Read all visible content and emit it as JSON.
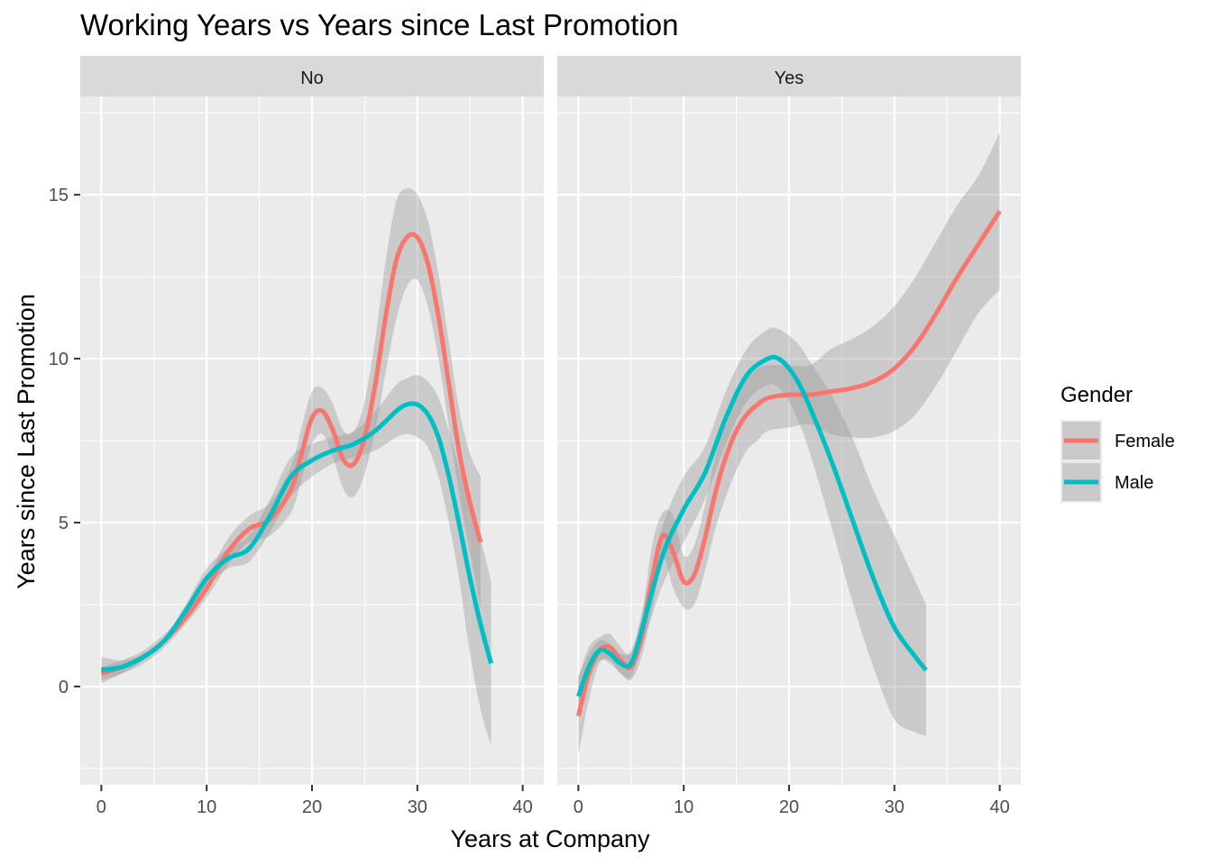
{
  "chart_data": {
    "type": "line",
    "title": "Working Years vs Years since Last Promotion",
    "xlabel": "Years at Company",
    "ylabel": "Years since Last Promotion",
    "xlim": [
      -2,
      42
    ],
    "ylim": [
      -3,
      18
    ],
    "x_ticks": [
      0,
      10,
      20,
      30,
      40
    ],
    "y_ticks": [
      0,
      5,
      10,
      15
    ],
    "grid": true,
    "legend": {
      "title": "Gender",
      "position": "right",
      "entries": [
        "Female",
        "Male"
      ]
    },
    "colors": {
      "Female": "#F8766D",
      "Male": "#00BFC4",
      "ribbon": "#999999",
      "panel": "#EBEBEB",
      "strip": "#D9D9D9"
    },
    "panels": [
      {
        "label": "No",
        "series": [
          {
            "name": "Female",
            "x": [
              0,
              2,
              4,
              6,
              8,
              10,
              12,
              14,
              16,
              18,
              19,
              20,
              21,
              22,
              23,
              24,
              25,
              26,
              27,
              28,
              29,
              30,
              31,
              32,
              33,
              34,
              35,
              36
            ],
            "y": [
              0.4,
              0.6,
              0.9,
              1.4,
              2.1,
              3.0,
              4.1,
              4.8,
              5.1,
              6.0,
              7.1,
              8.2,
              8.4,
              7.8,
              6.9,
              6.8,
              7.6,
              9.2,
              11.3,
              13.0,
              13.7,
              13.7,
              12.9,
              11.3,
              9.2,
              7.1,
              5.6,
              4.4
            ],
            "lower": [
              0.2,
              0.4,
              0.7,
              1.2,
              1.9,
              2.7,
              3.7,
              4.4,
              4.6,
              5.3,
              6.3,
              7.4,
              7.7,
              7.0,
              6.0,
              5.8,
              6.5,
              7.8,
              9.6,
              11.2,
              12.2,
              12.4,
              11.6,
              10.0,
              7.9,
              5.8,
              4.1,
              2.4
            ],
            "upper": [
              0.6,
              0.8,
              1.1,
              1.6,
              2.3,
              3.3,
              4.5,
              5.2,
              5.6,
              6.7,
              7.9,
              9.0,
              9.1,
              8.6,
              7.8,
              7.8,
              8.7,
              10.6,
              13.0,
              14.8,
              15.2,
              15.0,
              14.2,
              12.6,
              10.5,
              8.4,
              7.1,
              6.4
            ]
          },
          {
            "name": "Male",
            "x": [
              0,
              2,
              4,
              6,
              8,
              10,
              12,
              14,
              16,
              18,
              20,
              22,
              24,
              26,
              28,
              29,
              30,
              31,
              32,
              33,
              34,
              35,
              36,
              37
            ],
            "y": [
              0.5,
              0.6,
              0.9,
              1.4,
              2.3,
              3.3,
              3.9,
              4.2,
              5.2,
              6.4,
              6.9,
              7.2,
              7.4,
              7.8,
              8.4,
              8.6,
              8.6,
              8.3,
              7.6,
              6.4,
              4.9,
              3.3,
              1.9,
              0.7
            ],
            "lower": [
              0.1,
              0.4,
              0.8,
              1.3,
              2.1,
              3.0,
              3.6,
              3.8,
              4.7,
              5.8,
              6.4,
              6.8,
              7.0,
              7.2,
              7.6,
              7.7,
              7.6,
              7.3,
              6.4,
              5.0,
              3.2,
              1.0,
              -0.7,
              -1.8
            ],
            "upper": [
              0.9,
              0.8,
              1.0,
              1.5,
              2.5,
              3.6,
              4.2,
              4.6,
              5.7,
              7.0,
              7.4,
              7.6,
              7.8,
              8.4,
              9.2,
              9.4,
              9.5,
              9.3,
              8.8,
              7.8,
              6.6,
              5.6,
              4.5,
              3.2
            ]
          }
        ]
      },
      {
        "label": "Yes",
        "series": [
          {
            "name": "Female",
            "x": [
              0,
              1,
              2,
              3,
              4,
              5,
              6,
              7,
              8,
              9,
              10,
              11,
              12,
              13,
              14,
              15,
              16,
              17,
              18,
              20,
              22,
              24,
              26,
              28,
              30,
              32,
              34,
              36,
              38,
              40
            ],
            "y": [
              -0.9,
              0.4,
              1.1,
              1.2,
              0.8,
              0.6,
              1.5,
              3.3,
              4.6,
              4.1,
              3.2,
              3.4,
              4.5,
              5.9,
              7.0,
              7.8,
              8.3,
              8.6,
              8.8,
              8.9,
              8.9,
              9.0,
              9.1,
              9.3,
              9.7,
              10.4,
              11.4,
              12.5,
              13.5,
              14.5
            ],
            "lower": [
              -2.1,
              -0.4,
              0.7,
              0.8,
              0.4,
              0.2,
              0.9,
              2.3,
              3.9,
              3.0,
              2.4,
              2.5,
              3.5,
              4.8,
              5.8,
              6.6,
              7.2,
              7.5,
              7.8,
              7.9,
              8.0,
              7.7,
              7.6,
              7.6,
              7.8,
              8.3,
              9.2,
              10.3,
              11.4,
              12.1
            ],
            "upper": [
              0.3,
              1.2,
              1.5,
              1.6,
              1.2,
              1.0,
              2.1,
              4.3,
              5.3,
              5.2,
              4.0,
              4.3,
              5.5,
              7.0,
              8.2,
              9.0,
              9.4,
              9.7,
              9.8,
              9.8,
              9.8,
              10.3,
              10.6,
              11.0,
              11.6,
              12.5,
              13.6,
              14.7,
              15.6,
              16.9
            ]
          },
          {
            "name": "Male",
            "x": [
              0,
              1,
              2,
              3,
              4,
              5,
              6,
              8,
              10,
              12,
              14,
              16,
              18,
              19,
              20,
              21,
              22,
              24,
              26,
              28,
              30,
              32,
              33
            ],
            "y": [
              -0.3,
              0.6,
              1.1,
              1.0,
              0.7,
              0.7,
              1.7,
              4.0,
              5.4,
              6.5,
              8.2,
              9.5,
              10.0,
              10.0,
              9.7,
              9.2,
              8.5,
              6.9,
              5.1,
              3.3,
              1.8,
              0.9,
              0.5
            ],
            "lower": [
              -0.9,
              0.2,
              0.8,
              0.7,
              0.4,
              0.3,
              1.2,
              3.1,
              4.4,
              5.7,
              7.4,
              8.7,
              9.2,
              9.1,
              8.7,
              8.0,
              7.1,
              4.9,
              2.6,
              0.6,
              -1.0,
              -1.4,
              -1.5
            ],
            "upper": [
              0.3,
              1.0,
              1.4,
              1.3,
              1.0,
              1.1,
              2.2,
              4.9,
              6.4,
              7.3,
              9.0,
              10.3,
              10.9,
              10.9,
              10.7,
              10.4,
              9.9,
              8.9,
              7.6,
              6.0,
              4.6,
              3.2,
              2.5
            ]
          }
        ]
      }
    ]
  }
}
